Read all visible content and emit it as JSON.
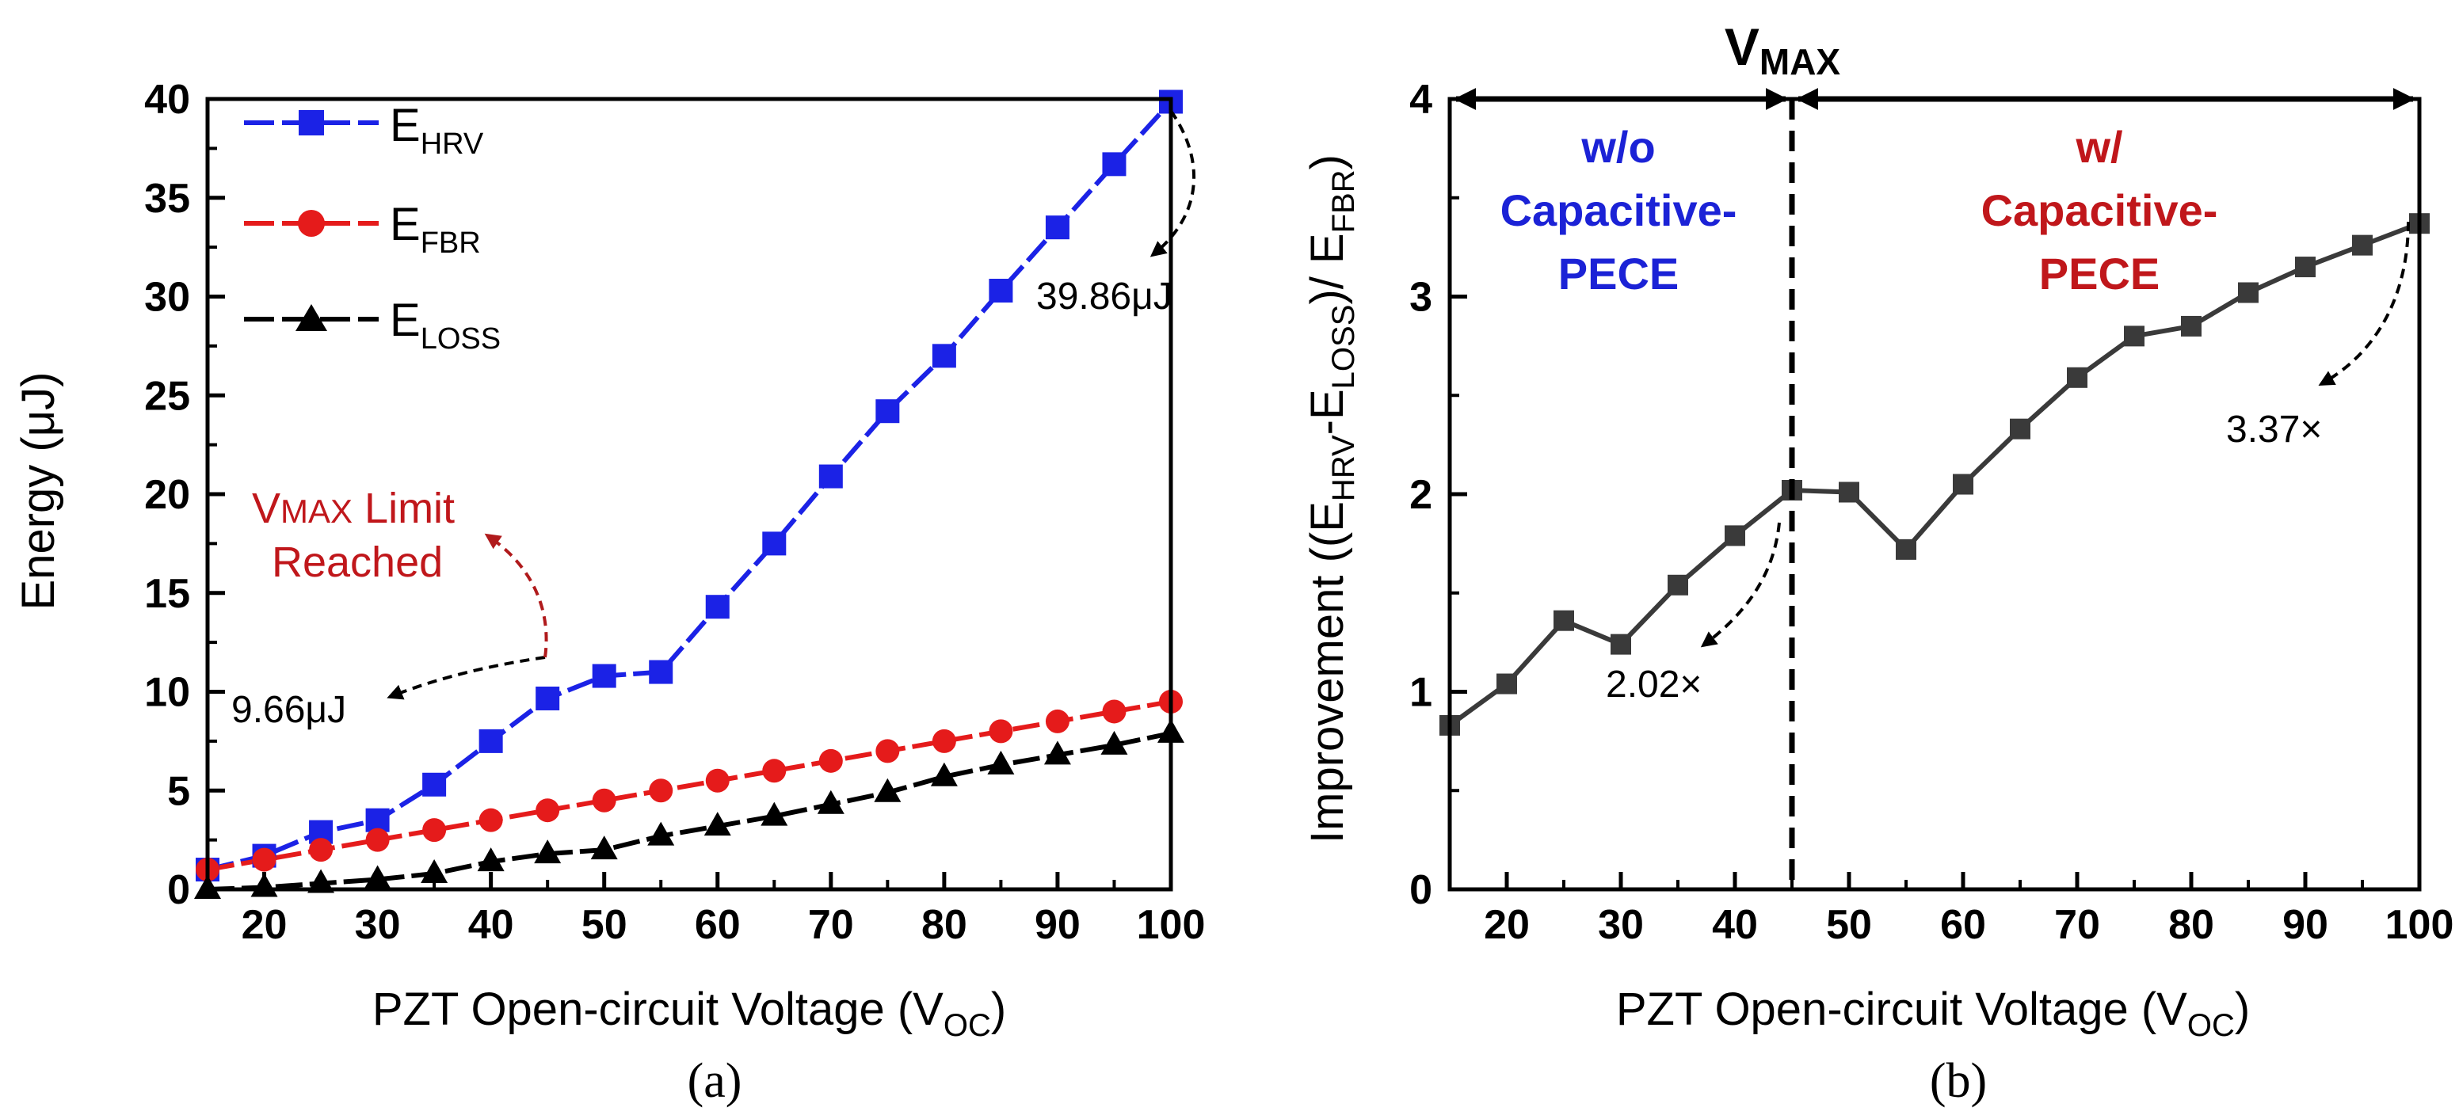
{
  "chart_data": [
    {
      "type": "line",
      "panel_label": "(a)",
      "xlabel": "PZT Open-circuit Voltage (V",
      "xlabel_sub": "OC",
      "xlabel_close": ")",
      "ylabel": "Energy (μJ)",
      "xlim": [
        15,
        100
      ],
      "ylim": [
        0,
        40
      ],
      "xticks": [
        "20",
        "30",
        "40",
        "50",
        "60",
        "70",
        "80",
        "90",
        "100"
      ],
      "yticks": [
        "0",
        "5",
        "10",
        "15",
        "20",
        "25",
        "30",
        "35",
        "40"
      ],
      "legend_position": "top-left",
      "x": [
        15,
        20,
        25,
        30,
        35,
        40,
        45,
        50,
        55,
        60,
        65,
        70,
        75,
        80,
        85,
        90,
        95,
        100
      ],
      "series": [
        {
          "name": "E",
          "sub": "HRV",
          "marker": "square",
          "color": "#1b22e6",
          "values": [
            1.0,
            1.7,
            2.9,
            3.5,
            5.3,
            7.5,
            9.66,
            10.8,
            11.0,
            14.3,
            17.5,
            20.9,
            24.2,
            27.0,
            30.3,
            33.5,
            36.7,
            39.86
          ]
        },
        {
          "name": "E",
          "sub": "FBR",
          "marker": "circle",
          "color": "#e51b1b",
          "values": [
            1.0,
            1.5,
            2.0,
            2.5,
            3.0,
            3.5,
            4.0,
            4.5,
            5.0,
            5.5,
            6.0,
            6.5,
            7.0,
            7.5,
            8.0,
            8.5,
            9.0,
            9.5
          ]
        },
        {
          "name": "E",
          "sub": "LOSS",
          "marker": "triangle",
          "color": "#000000",
          "values": [
            0.0,
            0.1,
            0.3,
            0.5,
            0.8,
            1.4,
            1.8,
            2.0,
            2.7,
            3.2,
            3.7,
            4.3,
            4.9,
            5.7,
            6.3,
            6.8,
            7.3,
            7.9
          ]
        }
      ],
      "annotations": {
        "peak_value": "39.86μJ",
        "vmax_value": "9.66μJ",
        "limit_v": "V",
        "limit_sub": "MAX",
        "limit_rest": " Limit",
        "limit_line2": "Reached"
      }
    },
    {
      "type": "line",
      "panel_label": "(b)",
      "xlabel": "PZT Open-circuit Voltage (V",
      "xlabel_sub": "OC",
      "xlabel_close": ")",
      "ylabel_parts": [
        "Improvement ((E",
        "HRV",
        "-E",
        "LOSS",
        ")/ E",
        "FBR",
        ")"
      ],
      "xlim": [
        15,
        100
      ],
      "ylim": [
        0,
        4
      ],
      "xticks": [
        "20",
        "30",
        "40",
        "50",
        "60",
        "70",
        "80",
        "90",
        "100"
      ],
      "yticks": [
        "0",
        "1",
        "2",
        "3",
        "4"
      ],
      "x": [
        15,
        20,
        25,
        30,
        35,
        40,
        45,
        50,
        55,
        60,
        65,
        70,
        75,
        80,
        85,
        90,
        95,
        100
      ],
      "series": [
        {
          "name": "Improvement",
          "marker": "square",
          "color": "#3a3a3a",
          "values": [
            0.83,
            1.04,
            1.36,
            1.24,
            1.54,
            1.79,
            2.02,
            2.01,
            1.72,
            2.05,
            2.33,
            2.59,
            2.8,
            2.85,
            3.02,
            3.15,
            3.26,
            3.37
          ]
        }
      ],
      "annotations": {
        "vmax_label": "V",
        "vmax_sub": "MAX",
        "vmax_x": 45,
        "left_region": [
          "w/o",
          "Capacitive-",
          "PECE"
        ],
        "right_region": [
          "w/",
          "Capacitive-",
          "PECE"
        ],
        "at_vmax": "2.02×",
        "at_peak": "3.37×"
      }
    }
  ]
}
